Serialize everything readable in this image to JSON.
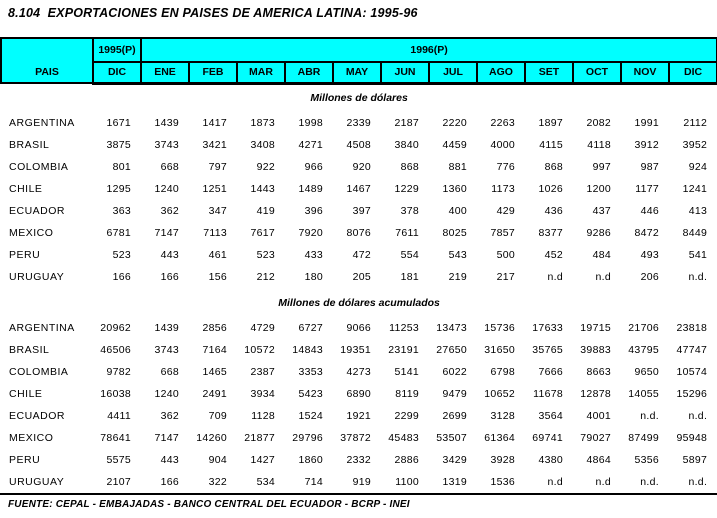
{
  "title": "8.104  EXPORTACIONES EN PAISES DE AMERICA LATINA: 1995-96",
  "colors": {
    "header_bg": "#00ffff",
    "border": "#000000",
    "text": "#000000"
  },
  "table": {
    "header": {
      "pais_label": "PAIS",
      "group_1995": "1995(P)",
      "group_1996": "1996(P)",
      "columns": [
        "DIC",
        "ENE",
        "FEB",
        "MAR",
        "ABR",
        "MAY",
        "JUN",
        "JUL",
        "AGO",
        "SET",
        "OCT",
        "NOV",
        "DIC"
      ]
    },
    "sections": [
      {
        "label": "Millones de dólares",
        "rows": [
          {
            "pais": "ARGENTINA",
            "values": [
              "1671",
              "1439",
              "1417",
              "1873",
              "1998",
              "2339",
              "2187",
              "2220",
              "2263",
              "1897",
              "2082",
              "1991",
              "2112"
            ]
          },
          {
            "pais": "BRASIL",
            "values": [
              "3875",
              "3743",
              "3421",
              "3408",
              "4271",
              "4508",
              "3840",
              "4459",
              "4000",
              "4115",
              "4118",
              "3912",
              "3952"
            ]
          },
          {
            "pais": "COLOMBIA",
            "values": [
              "801",
              "668",
              "797",
              "922",
              "966",
              "920",
              "868",
              "881",
              "776",
              "868",
              "997",
              "987",
              "924"
            ]
          },
          {
            "pais": "CHILE",
            "values": [
              "1295",
              "1240",
              "1251",
              "1443",
              "1489",
              "1467",
              "1229",
              "1360",
              "1173",
              "1026",
              "1200",
              "1177",
              "1241"
            ]
          },
          {
            "pais": "ECUADOR",
            "values": [
              "363",
              "362",
              "347",
              "419",
              "396",
              "397",
              "378",
              "400",
              "429",
              "436",
              "437",
              "446",
              "413"
            ]
          },
          {
            "pais": "MEXICO",
            "values": [
              "6781",
              "7147",
              "7113",
              "7617",
              "7920",
              "8076",
              "7611",
              "8025",
              "7857",
              "8377",
              "9286",
              "8472",
              "8449"
            ]
          },
          {
            "pais": "PERU",
            "values": [
              "523",
              "443",
              "461",
              "523",
              "433",
              "472",
              "554",
              "543",
              "500",
              "452",
              "484",
              "493",
              "541"
            ]
          },
          {
            "pais": "URUGUAY",
            "values": [
              "166",
              "166",
              "156",
              "212",
              "180",
              "205",
              "181",
              "219",
              "217",
              "n.d",
              "n.d",
              "206",
              "n.d."
            ]
          }
        ]
      },
      {
        "label": "Millones de dólares acumulados",
        "rows": [
          {
            "pais": "ARGENTINA",
            "values": [
              "20962",
              "1439",
              "2856",
              "4729",
              "6727",
              "9066",
              "11253",
              "13473",
              "15736",
              "17633",
              "19715",
              "21706",
              "23818"
            ]
          },
          {
            "pais": "BRASIL",
            "values": [
              "46506",
              "3743",
              "7164",
              "10572",
              "14843",
              "19351",
              "23191",
              "27650",
              "31650",
              "35765",
              "39883",
              "43795",
              "47747"
            ]
          },
          {
            "pais": "COLOMBIA",
            "values": [
              "9782",
              "668",
              "1465",
              "2387",
              "3353",
              "4273",
              "5141",
              "6022",
              "6798",
              "7666",
              "8663",
              "9650",
              "10574"
            ]
          },
          {
            "pais": "CHILE",
            "values": [
              "16038",
              "1240",
              "2491",
              "3934",
              "5423",
              "6890",
              "8119",
              "9479",
              "10652",
              "11678",
              "12878",
              "14055",
              "15296"
            ]
          },
          {
            "pais": "ECUADOR",
            "values": [
              "4411",
              "362",
              "709",
              "1128",
              "1524",
              "1921",
              "2299",
              "2699",
              "3128",
              "3564",
              "4001",
              "n.d.",
              "n.d."
            ]
          },
          {
            "pais": "MEXICO",
            "values": [
              "78641",
              "7147",
              "14260",
              "21877",
              "29796",
              "37872",
              "45483",
              "53507",
              "61364",
              "69741",
              "79027",
              "87499",
              "95948"
            ]
          },
          {
            "pais": "PERU",
            "values": [
              "5575",
              "443",
              "904",
              "1427",
              "1860",
              "2332",
              "2886",
              "3429",
              "3928",
              "4380",
              "4864",
              "5356",
              "5897"
            ]
          },
          {
            "pais": "URUGUAY",
            "values": [
              "2107",
              "166",
              "322",
              "534",
              "714",
              "919",
              "1100",
              "1319",
              "1536",
              "n.d",
              "n.d",
              "n.d.",
              "n.d."
            ]
          }
        ]
      }
    ]
  },
  "footer": {
    "source": "FUENTE: CEPAL - EMBAJADAS - BANCO CENTRAL DEL ECUADOR - BCRP - INEI"
  }
}
